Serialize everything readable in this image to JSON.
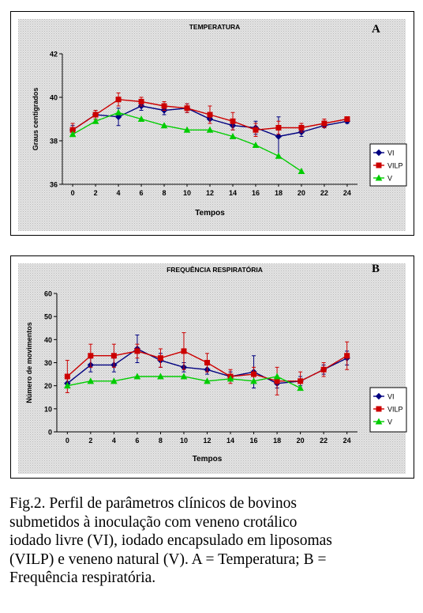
{
  "chart_data": [
    {
      "type": "line",
      "panel_letter": "A",
      "title": "TEMPERATURA",
      "xlabel": "Tempos",
      "ylabel": "Graus centigrados",
      "x": [
        0,
        2,
        4,
        6,
        8,
        10,
        12,
        14,
        16,
        18,
        20,
        22,
        24
      ],
      "x_ticks": [
        "0",
        "2",
        "4",
        "6",
        "8",
        "10",
        "12",
        "14",
        "16",
        "18",
        "20",
        "22",
        "24"
      ],
      "ylim": [
        36,
        42
      ],
      "y_ticks": [
        "36",
        "38",
        "40",
        "42"
      ],
      "y_tick_values": [
        36,
        38,
        40,
        42
      ],
      "grid": "dotted background",
      "legend_position": "right",
      "series": [
        {
          "name": "VI",
          "color": "#000080",
          "marker": "diamond",
          "values": [
            38.5,
            39.2,
            39.1,
            39.6,
            39.4,
            39.5,
            39.0,
            38.7,
            38.6,
            38.2,
            38.4,
            38.7,
            38.9
          ],
          "errors": [
            0.2,
            0.2,
            0.4,
            0.2,
            0.2,
            0.2,
            0.2,
            0.2,
            0.3,
            0.9,
            0.2,
            0.1,
            0.1
          ]
        },
        {
          "name": "VILP",
          "color": "#cc0000",
          "marker": "square",
          "values": [
            38.5,
            39.2,
            39.9,
            39.8,
            39.6,
            39.5,
            39.2,
            38.9,
            38.5,
            38.6,
            38.6,
            38.8,
            39.0
          ],
          "errors": [
            0.3,
            0.2,
            0.3,
            0.2,
            0.2,
            0.2,
            0.4,
            0.4,
            0.3,
            0.3,
            0.2,
            0.2,
            0.1
          ]
        },
        {
          "name": "V",
          "color": "#00cc00",
          "marker": "triangle",
          "values": [
            38.3,
            38.9,
            39.3,
            39.0,
            38.7,
            38.5,
            38.5,
            38.2,
            37.8,
            37.3,
            36.6,
            null,
            null
          ],
          "errors": [
            0,
            0,
            0,
            0,
            0,
            0,
            0,
            0,
            0,
            0,
            0,
            null,
            null
          ]
        }
      ]
    },
    {
      "type": "line",
      "panel_letter": "B",
      "title": "FREQUÊNCIA RESPIRATÓRIA",
      "xlabel": "Tempos",
      "ylabel": "Número de movimentos",
      "x": [
        0,
        2,
        4,
        6,
        8,
        10,
        12,
        14,
        16,
        18,
        20,
        22,
        24
      ],
      "x_ticks": [
        "0",
        "2",
        "4",
        "6",
        "8",
        "10",
        "12",
        "14",
        "16",
        "18",
        "20",
        "22",
        "24"
      ],
      "ylim": [
        0,
        60
      ],
      "y_ticks": [
        "0",
        "10",
        "20",
        "30",
        "40",
        "50",
        "60"
      ],
      "y_tick_values": [
        0,
        10,
        20,
        30,
        40,
        50,
        60
      ],
      "grid": "dotted background",
      "legend_position": "right",
      "series": [
        {
          "name": "VI",
          "color": "#000080",
          "marker": "diamond",
          "values": [
            21,
            29,
            29,
            36,
            31,
            28,
            27,
            24,
            26,
            21,
            22,
            27,
            32
          ],
          "errors": [
            2,
            3,
            3,
            6,
            3,
            2,
            2,
            2,
            7,
            2,
            2,
            2,
            3
          ]
        },
        {
          "name": "VILP",
          "color": "#cc0000",
          "marker": "square",
          "values": [
            24,
            33,
            33,
            35,
            32,
            35,
            30,
            24,
            25,
            22,
            22,
            27,
            33
          ],
          "errors": [
            7,
            5,
            5,
            3,
            4,
            8,
            4,
            3,
            3,
            6,
            4,
            3,
            6
          ]
        },
        {
          "name": "V",
          "color": "#00cc00",
          "marker": "triangle",
          "values": [
            20,
            22,
            22,
            24,
            24,
            24,
            22,
            23,
            22,
            24,
            19,
            null,
            null
          ],
          "errors": [
            0,
            0,
            0,
            0,
            0,
            0,
            0,
            0,
            0,
            0,
            0,
            null,
            null
          ]
        }
      ]
    }
  ],
  "caption": {
    "lines": [
      "Fig.2. Perfil de parâmetros clínicos de bovinos",
      "submetidos à inoculação com veneno crotálico",
      "iodado livre (VI), iodado encapsulado em liposomas",
      "(VILP) e veneno natural (V). A = Temperatura; B =",
      "Frequência respiratória."
    ]
  }
}
